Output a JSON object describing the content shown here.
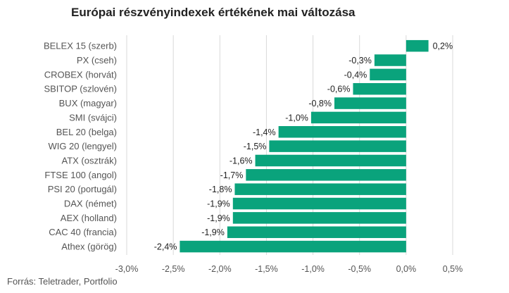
{
  "chart_data": {
    "type": "bar",
    "orientation": "horizontal",
    "title": "Európai részvényindexek értékének mai változása",
    "source": "Forrás: Teletrader, Portfolio",
    "categories": [
      "BELEX 15 (szerb)",
      "PX (cseh)",
      "CROBEX (horvát)",
      "SBITOP (szlovén)",
      "BUX (magyar)",
      "SMI (svájci)",
      "BEL 20 (belga)",
      "WIG 20 (lengyel)",
      "ATX (osztrák)",
      "FTSE 100 (angol)",
      "PSI 20 (portugál)",
      "DAX (német)",
      "AEX (holland)",
      "CAC 40 (francia)",
      "Athex (görög)"
    ],
    "values": [
      0.24,
      -0.34,
      -0.39,
      -0.57,
      -0.77,
      -1.02,
      -1.37,
      -1.47,
      -1.62,
      -1.72,
      -1.84,
      -1.86,
      -1.86,
      -1.92,
      -2.43
    ],
    "value_labels": [
      "0,2%",
      "-0,3%",
      "-0,4%",
      "-0,6%",
      "-0,8%",
      "-1,0%",
      "-1,4%",
      "-1,5%",
      "-1,6%",
      "-1,7%",
      "-1,8%",
      "-1,9%",
      "-1,9%",
      "-1,9%",
      "-2,4%"
    ],
    "x_ticks": [
      -3.0,
      -2.5,
      -2.0,
      -1.5,
      -1.0,
      -0.5,
      0.0,
      0.5
    ],
    "x_tick_labels": [
      "-3,0%",
      "-2,5%",
      "-2,0%",
      "-1,5%",
      "-1,0%",
      "-0,5%",
      "0,0%",
      "0,5%"
    ],
    "xlim": [
      -3.0,
      0.5
    ],
    "grid": true,
    "bar_color": "#0aa37c",
    "grid_color": "#d9d9d9"
  }
}
